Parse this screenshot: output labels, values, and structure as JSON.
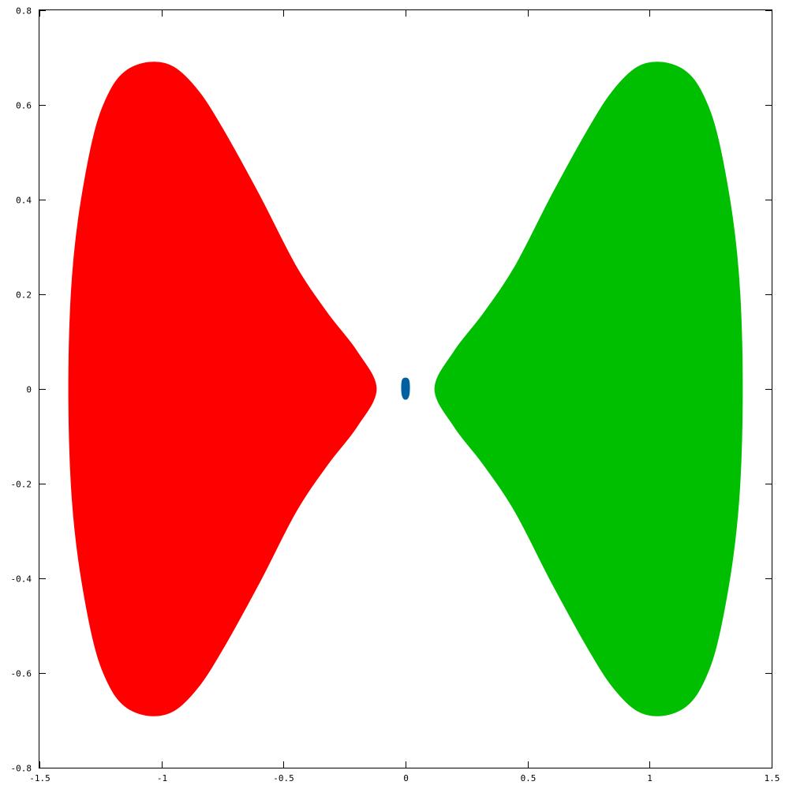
{
  "chart_data": {
    "type": "area",
    "title": "",
    "xlabel": "",
    "ylabel": "",
    "xlim": [
      -1.5,
      1.5
    ],
    "ylim": [
      -0.8,
      0.8
    ],
    "grid": false,
    "x_ticks": [
      "-1.5",
      "-1",
      "-0.5",
      "0",
      "0.5",
      "1",
      "1.5"
    ],
    "y_ticks": [
      "-0.8",
      "-0.6",
      "-0.4",
      "-0.2",
      "0",
      "0.2",
      "0.4",
      "0.6",
      "0.8"
    ],
    "series": [
      {
        "color": "#ff0000",
        "shape": "filled-region",
        "outline": [
          [
            -1.38,
            0.0
          ],
          [
            -1.37,
            0.2
          ],
          [
            -1.34,
            0.36
          ],
          [
            -1.28,
            0.53
          ],
          [
            -1.22,
            0.62
          ],
          [
            -1.15,
            0.67
          ],
          [
            -1.05,
            0.69
          ],
          [
            -0.95,
            0.68
          ],
          [
            -0.85,
            0.63
          ],
          [
            -0.75,
            0.55
          ],
          [
            -0.6,
            0.41
          ],
          [
            -0.45,
            0.26
          ],
          [
            -0.32,
            0.16
          ],
          [
            -0.2,
            0.08
          ],
          [
            -0.12,
            0.0
          ],
          [
            -0.2,
            -0.08
          ],
          [
            -0.32,
            -0.16
          ],
          [
            -0.45,
            -0.26
          ],
          [
            -0.6,
            -0.41
          ],
          [
            -0.75,
            -0.55
          ],
          [
            -0.85,
            -0.63
          ],
          [
            -0.95,
            -0.68
          ],
          [
            -1.05,
            -0.69
          ],
          [
            -1.15,
            -0.67
          ],
          [
            -1.22,
            -0.62
          ],
          [
            -1.28,
            -0.53
          ],
          [
            -1.34,
            -0.36
          ],
          [
            -1.37,
            -0.2
          ]
        ]
      },
      {
        "color": "#00bf00",
        "shape": "filled-region",
        "outline": [
          [
            1.38,
            0.0
          ],
          [
            1.37,
            -0.2
          ],
          [
            1.34,
            -0.36
          ],
          [
            1.28,
            -0.53
          ],
          [
            1.22,
            -0.62
          ],
          [
            1.15,
            -0.67
          ],
          [
            1.05,
            -0.69
          ],
          [
            0.95,
            -0.68
          ],
          [
            0.85,
            -0.63
          ],
          [
            0.75,
            -0.55
          ],
          [
            0.6,
            -0.41
          ],
          [
            0.45,
            -0.26
          ],
          [
            0.32,
            -0.16
          ],
          [
            0.2,
            -0.08
          ],
          [
            0.12,
            0.0
          ],
          [
            0.2,
            0.08
          ],
          [
            0.32,
            0.16
          ],
          [
            0.45,
            0.26
          ],
          [
            0.6,
            0.41
          ],
          [
            0.75,
            0.55
          ],
          [
            0.85,
            0.63
          ],
          [
            0.95,
            0.68
          ],
          [
            1.05,
            0.69
          ],
          [
            1.15,
            0.67
          ],
          [
            1.22,
            0.62
          ],
          [
            1.28,
            0.53
          ],
          [
            1.34,
            0.36
          ],
          [
            1.37,
            0.2
          ]
        ]
      },
      {
        "color": "#0060a0",
        "shape": "filled-region",
        "outline": [
          [
            -0.012,
            0.02
          ],
          [
            0.012,
            0.02
          ],
          [
            0.016,
            -0.005
          ],
          [
            0.008,
            -0.02
          ],
          [
            -0.008,
            -0.02
          ],
          [
            -0.016,
            -0.005
          ]
        ]
      }
    ]
  }
}
